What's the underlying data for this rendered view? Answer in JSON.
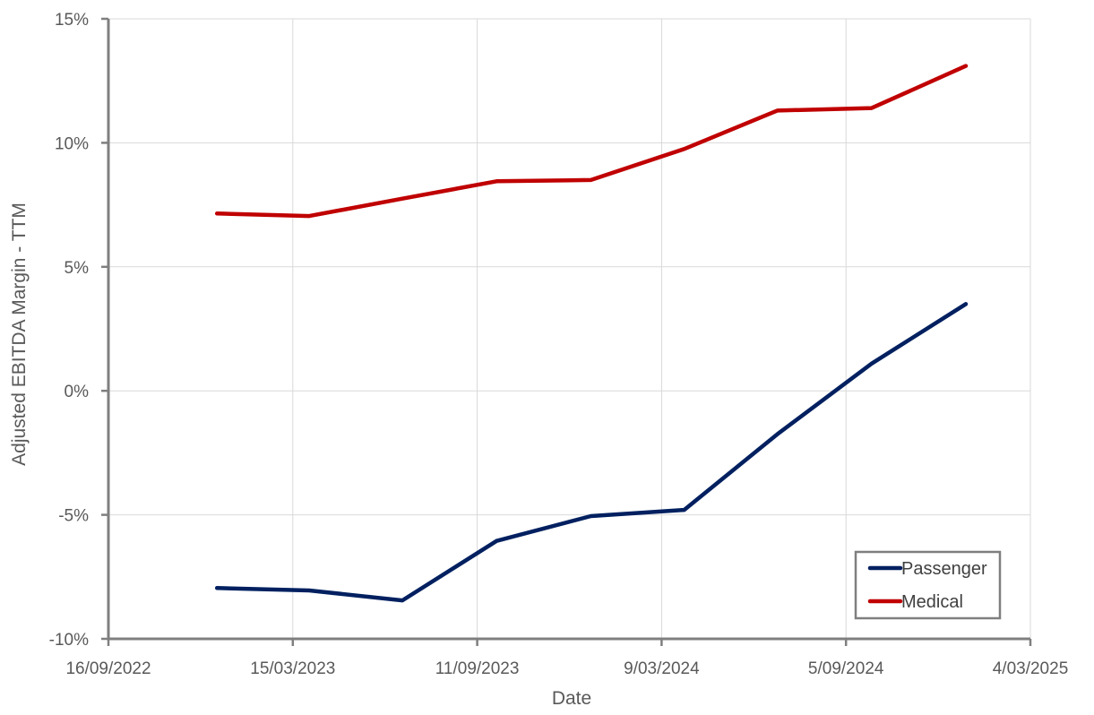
{
  "chart_data": {
    "type": "line",
    "title": "",
    "xlabel": "Date",
    "ylabel": "Adjusted EBITDA Margin - TTM",
    "x_tick_labels": [
      "16/09/2022",
      "15/03/2023",
      "11/09/2023",
      "9/03/2024",
      "5/09/2024",
      "4/03/2025"
    ],
    "y_tick_labels": [
      "-10%",
      "-5%",
      "0%",
      "5%",
      "10%",
      "15%"
    ],
    "ylim": [
      -10,
      15
    ],
    "xlim": [
      "16/09/2022",
      "4/03/2025"
    ],
    "grid": true,
    "legend_position": "lower right",
    "x": [
      "31/12/2022",
      "31/03/2023",
      "30/06/2023",
      "30/09/2023",
      "31/12/2023",
      "31/03/2024",
      "30/06/2024",
      "30/09/2024",
      "31/12/2024"
    ],
    "series": [
      {
        "name": "Passenger",
        "color": "#002060",
        "values": [
          -7.95,
          -8.05,
          -8.45,
          -6.05,
          -5.05,
          -4.8,
          -1.75,
          1.1,
          3.5
        ]
      },
      {
        "name": "Medical",
        "color": "#C00000",
        "values": [
          7.15,
          7.05,
          7.75,
          8.45,
          8.5,
          9.75,
          11.3,
          11.4,
          13.1
        ]
      }
    ]
  },
  "legend": {
    "items": [
      {
        "label": "Passenger",
        "color": "#002060"
      },
      {
        "label": "Medical",
        "color": "#C00000"
      }
    ]
  }
}
